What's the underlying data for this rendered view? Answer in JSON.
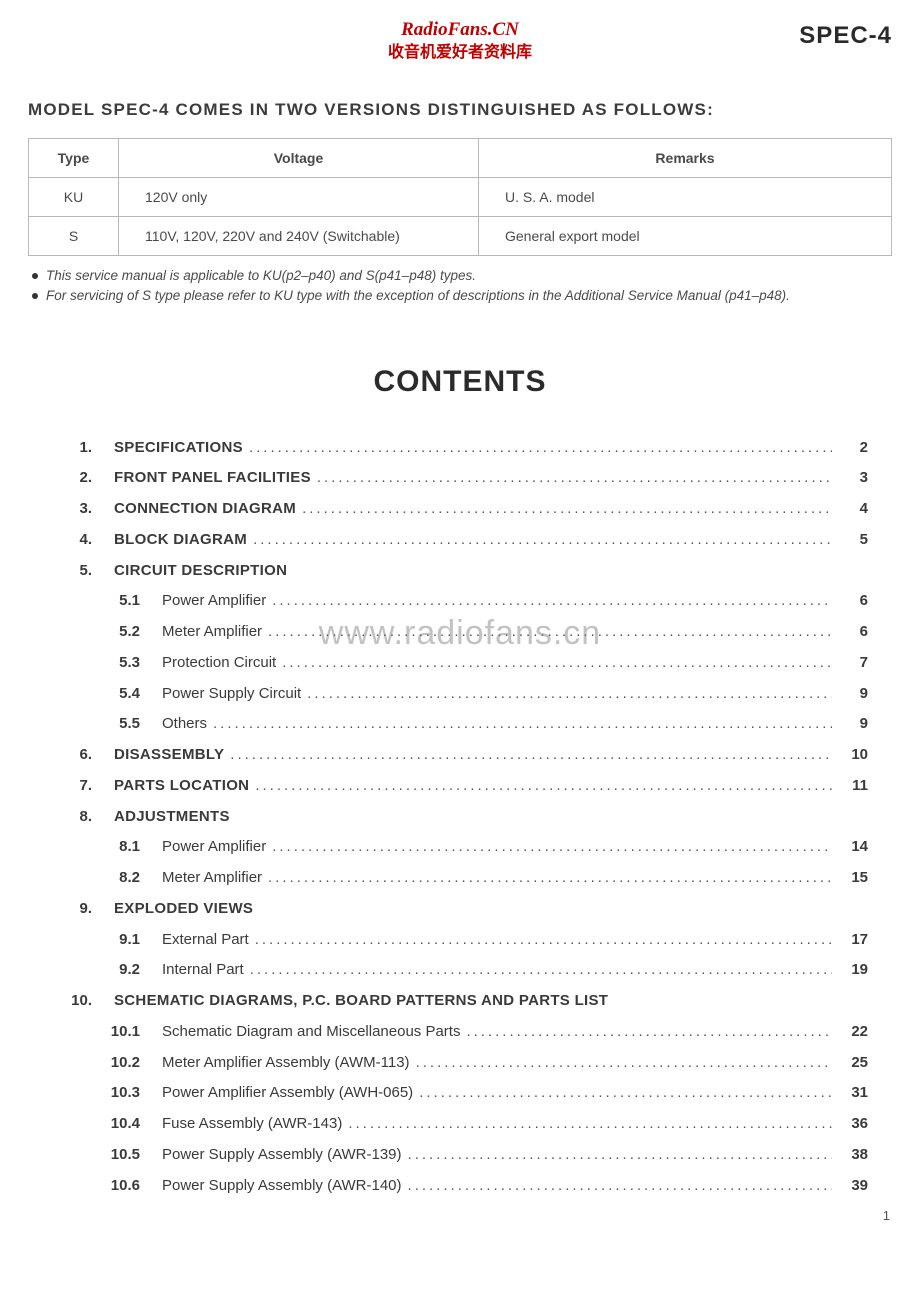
{
  "watermark_top": {
    "line1": "RadioFans.CN",
    "line2": "收音机爱好者资料库",
    "color": "#c00000"
  },
  "watermark_center": "www.radiofans.cn",
  "model_logo": "SPEC-4",
  "subtitle": "MODEL SPEC-4 COMES IN TWO VERSIONS DISTINGUISHED AS FOLLOWS:",
  "table": {
    "headers": [
      "Type",
      "Voltage",
      "Remarks"
    ],
    "rows": [
      {
        "type": "KU",
        "voltage": "120V only",
        "remarks": "U. S. A. model"
      },
      {
        "type": "S",
        "voltage": "110V, 120V, 220V and 240V (Switchable)",
        "remarks": "General export model"
      }
    ],
    "border_color": "#b8b8b8"
  },
  "notes": [
    "This service manual is applicable to KU(p2–p40) and S(p41–p48) types.",
    "For servicing of S type please refer to KU type with the exception of descriptions in the Additional Service Manual (p41–p48)."
  ],
  "contents_heading": "CONTENTS",
  "toc": [
    {
      "n": "1.",
      "t": "SPECIFICATIONS",
      "p": "2",
      "lvl": 0
    },
    {
      "n": "2.",
      "t": "FRONT PANEL FACILITIES",
      "p": "3",
      "lvl": 0
    },
    {
      "n": "3.",
      "t": "CONNECTION DIAGRAM",
      "p": "4",
      "lvl": 0
    },
    {
      "n": "4.",
      "t": "BLOCK DIAGRAM",
      "p": "5",
      "lvl": 0
    },
    {
      "n": "5.",
      "t": "CIRCUIT DESCRIPTION",
      "p": "",
      "lvl": 0,
      "nohdr": true
    },
    {
      "n": "5.1",
      "t": "Power Amplifier",
      "p": "6",
      "lvl": 1
    },
    {
      "n": "5.2",
      "t": "Meter Amplifier",
      "p": "6",
      "lvl": 1
    },
    {
      "n": "5.3",
      "t": "Protection Circuit",
      "p": "7",
      "lvl": 1
    },
    {
      "n": "5.4",
      "t": "Power Supply Circuit",
      "p": "9",
      "lvl": 1
    },
    {
      "n": "5.5",
      "t": "Others",
      "p": "9",
      "lvl": 1
    },
    {
      "n": "6.",
      "t": "DISASSEMBLY",
      "p": "10",
      "lvl": 0
    },
    {
      "n": "7.",
      "t": "PARTS LOCATION",
      "p": "11",
      "lvl": 0
    },
    {
      "n": "8.",
      "t": "ADJUSTMENTS",
      "p": "",
      "lvl": 0,
      "nohdr": true
    },
    {
      "n": "8.1",
      "t": "Power Amplifier",
      "p": "14",
      "lvl": 1
    },
    {
      "n": "8.2",
      "t": "Meter Amplifier",
      "p": "15",
      "lvl": 1
    },
    {
      "n": "9.",
      "t": "EXPLODED VIEWS",
      "p": "",
      "lvl": 0,
      "nohdr": true
    },
    {
      "n": "9.1",
      "t": "External Part",
      "p": "17",
      "lvl": 1
    },
    {
      "n": "9.2",
      "t": "Internal Part",
      "p": "19",
      "lvl": 1
    },
    {
      "n": "10.",
      "t": "SCHEMATIC DIAGRAMS, P.C. BOARD PATTERNS AND PARTS LIST",
      "p": "",
      "lvl": 0,
      "nohdr": true
    },
    {
      "n": "10.1",
      "t": "Schematic Diagram and Miscellaneous Parts",
      "p": "22",
      "lvl": 1
    },
    {
      "n": "10.2",
      "t": "Meter Amplifier Assembly (AWM-113)",
      "p": "25",
      "lvl": 1
    },
    {
      "n": "10.3",
      "t": "Power Amplifier Assembly (AWH-065)",
      "p": "31",
      "lvl": 1
    },
    {
      "n": "10.4",
      "t": "Fuse Assembly (AWR-143)",
      "p": "36",
      "lvl": 1
    },
    {
      "n": "10.5",
      "t": "Power Supply Assembly (AWR-139)",
      "p": "38",
      "lvl": 1
    },
    {
      "n": "10.6",
      "t": "Power Supply Assembly (AWR-140)",
      "p": "39",
      "lvl": 1
    }
  ],
  "page_number": "1",
  "colors": {
    "text": "#3a3a3a",
    "bg": "#ffffff"
  }
}
